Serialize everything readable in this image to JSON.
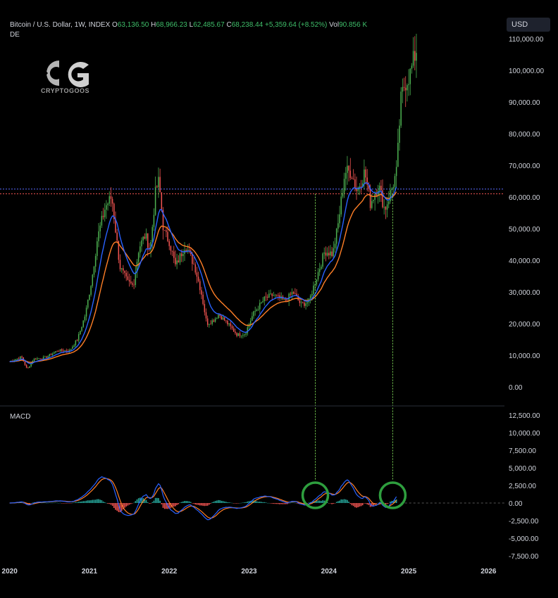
{
  "header": {
    "title": "Bitcoin / U.S. Dollar, 1W, INDEX",
    "o_label": "O",
    "o_value": "63,136.50",
    "h_label": "H",
    "h_value": "68,966.23",
    "l_label": "L",
    "l_value": "62,485.67",
    "c_label": "C",
    "c_value": "68,238.44",
    "change": "+5,359.64 (+8.52%)",
    "vol_label": "Vol",
    "vol_value": "90.856 K",
    "exchange": "DE"
  },
  "logo": {
    "brand": "CRYPTOGOOS",
    "icon": "cg-logo-icon"
  },
  "currency_button": "USD",
  "macd_label": "MACD",
  "colors": {
    "background": "#000000",
    "up": "#4caf50",
    "down": "#ef5350",
    "ema_fast": "#2962ff",
    "ema_slow": "#ff7f27",
    "macd_line": "#2962ff",
    "signal_line": "#ff7f27",
    "hist_up": "#26a69a",
    "hist_down": "#ef5350",
    "level_blue": "#5b6cff",
    "level_red": "#ef5350",
    "marker": "#2e9e3e",
    "guide": "#7ed957"
  },
  "chart_data": [
    {
      "type": "candlestick",
      "title": "Bitcoin / U.S. Dollar, 1W, INDEX",
      "ylim": [
        -5000,
        112000
      ],
      "y_ticks": [
        "110,000.00",
        "100,000.00",
        "90,000.00",
        "80,000.00",
        "70,000.00",
        "60,000.00",
        "50,000.00",
        "40,000.00",
        "30,000.00",
        "20,000.00",
        "10,000.00",
        "0.00"
      ],
      "y_tick_values": [
        110000,
        100000,
        90000,
        80000,
        70000,
        60000,
        50000,
        40000,
        30000,
        20000,
        10000,
        0
      ],
      "x_ticks": [
        "2020",
        "2021",
        "2022",
        "2023",
        "2024",
        "2025",
        "2026"
      ],
      "x_tick_values": [
        2020,
        2021,
        2022,
        2023,
        2024,
        2025,
        2026
      ],
      "xlim": [
        2019.95,
        2026.2
      ],
      "price_path": [
        [
          2020.0,
          8000
        ],
        [
          2020.15,
          9500
        ],
        [
          2020.22,
          5500
        ],
        [
          2020.3,
          8800
        ],
        [
          2020.45,
          9300
        ],
        [
          2020.6,
          11500
        ],
        [
          2020.75,
          11500
        ],
        [
          2020.85,
          15000
        ],
        [
          2020.95,
          23000
        ],
        [
          2021.03,
          34000
        ],
        [
          2021.1,
          47000
        ],
        [
          2021.2,
          57000
        ],
        [
          2021.28,
          60000
        ],
        [
          2021.38,
          38000
        ],
        [
          2021.48,
          33000
        ],
        [
          2021.55,
          32000
        ],
        [
          2021.62,
          44000
        ],
        [
          2021.7,
          48000
        ],
        [
          2021.76,
          43000
        ],
        [
          2021.83,
          62000
        ],
        [
          2021.87,
          65000
        ],
        [
          2021.93,
          49000
        ],
        [
          2022.0,
          46000
        ],
        [
          2022.08,
          38000
        ],
        [
          2022.2,
          45000
        ],
        [
          2022.32,
          38000
        ],
        [
          2022.4,
          30000
        ],
        [
          2022.47,
          20000
        ],
        [
          2022.55,
          21000
        ],
        [
          2022.62,
          23000
        ],
        [
          2022.75,
          19500
        ],
        [
          2022.85,
          16500
        ],
        [
          2022.95,
          16800
        ],
        [
          2023.05,
          23000
        ],
        [
          2023.2,
          28000
        ],
        [
          2023.3,
          29000
        ],
        [
          2023.45,
          27000
        ],
        [
          2023.55,
          30000
        ],
        [
          2023.65,
          26000
        ],
        [
          2023.75,
          27000
        ],
        [
          2023.85,
          35000
        ],
        [
          2023.95,
          43000
        ],
        [
          2024.05,
          42000
        ],
        [
          2024.12,
          52000
        ],
        [
          2024.2,
          68000
        ],
        [
          2024.28,
          68000
        ],
        [
          2024.35,
          62000
        ],
        [
          2024.45,
          68000
        ],
        [
          2024.52,
          58000
        ],
        [
          2024.62,
          64000
        ],
        [
          2024.7,
          56000
        ],
        [
          2024.78,
          62000
        ],
        [
          2024.85,
          68000
        ],
        [
          2024.9,
          90000
        ],
        [
          2024.95,
          96000
        ],
        [
          2025.02,
          99000
        ],
        [
          2025.08,
          105000
        ],
        [
          2025.1,
          107000
        ]
      ],
      "series": [
        {
          "name": "EMA fast",
          "color": "#2962ff",
          "period_weeks": 10
        },
        {
          "name": "EMA slow",
          "color": "#ff7f27",
          "period_weeks": 21
        }
      ],
      "levels": [
        62500,
        61000
      ],
      "guide_x": [
        2023.83,
        2024.8
      ]
    },
    {
      "type": "macd",
      "title": "MACD",
      "ylim": [
        -8000,
        13500
      ],
      "y_ticks": [
        "12,500.00",
        "10,000.00",
        "7,500.00",
        "5,000.00",
        "2,500.00",
        "0.00",
        "-2,500.00",
        "-5,000.00",
        "-7,500.00"
      ],
      "y_tick_values": [
        12500,
        10000,
        7500,
        5000,
        2500,
        0,
        -2500,
        -5000,
        -7500
      ],
      "series": [
        {
          "name": "MACD",
          "color": "#2962ff"
        },
        {
          "name": "Signal",
          "color": "#ff7f27"
        },
        {
          "name": "Histogram",
          "color": "#26a69a"
        }
      ],
      "crossover_markers": [
        {
          "x": 2023.83,
          "y": 1500
        },
        {
          "x": 2024.8,
          "y": 1500
        }
      ]
    }
  ]
}
